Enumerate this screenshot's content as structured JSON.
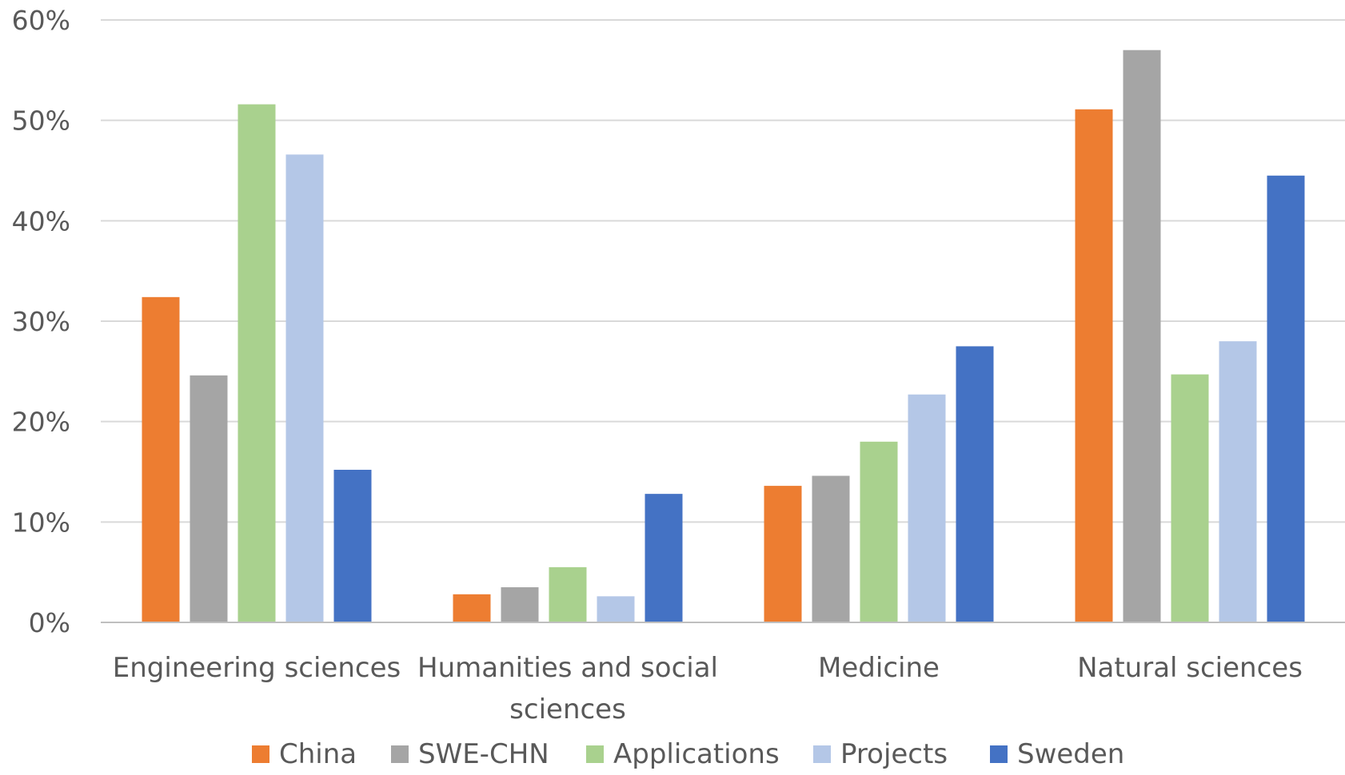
{
  "chart_data": {
    "type": "bar",
    "title": "",
    "xlabel": "",
    "ylabel": "",
    "ylim": [
      0,
      0.6
    ],
    "y_ticks": [
      "0%",
      "10%",
      "20%",
      "30%",
      "40%",
      "50%",
      "60%"
    ],
    "y_tick_values": [
      0,
      0.1,
      0.2,
      0.3,
      0.4,
      0.5,
      0.6
    ],
    "grid": true,
    "legend_position": "bottom",
    "categories": [
      "Engineering sciences",
      "Humanities and social sciences",
      "Medicine",
      "Natural sciences"
    ],
    "series": [
      {
        "name": "China",
        "color": "#ED7D31",
        "values": [
          0.324,
          0.028,
          0.136,
          0.511
        ]
      },
      {
        "name": "SWE-CHN",
        "color": "#A5A5A5",
        "values": [
          0.246,
          0.035,
          0.146,
          0.57
        ]
      },
      {
        "name": "Applications",
        "color": "#A9D18E",
        "values": [
          0.516,
          0.055,
          0.18,
          0.247
        ]
      },
      {
        "name": "Projects",
        "color": "#B4C7E7",
        "values": [
          0.466,
          0.026,
          0.227,
          0.28
        ]
      },
      {
        "name": "Sweden",
        "color": "#4472C4",
        "values": [
          0.152,
          0.128,
          0.275,
          0.445
        ]
      }
    ]
  }
}
